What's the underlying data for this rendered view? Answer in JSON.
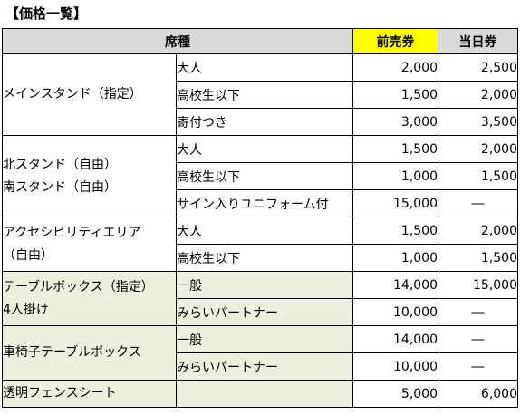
{
  "title": "【価格一覧】",
  "colors": {
    "header_gray": "#d9d9d9",
    "advance_yellow": "#ffff00",
    "green_rows": "#ebf1de"
  },
  "headers": {
    "seat": "席種",
    "advance": "前売券",
    "sameday": "当日券"
  },
  "sections": [
    {
      "lines": [
        "メインスタンド（指定）"
      ],
      "green": false,
      "rows": [
        {
          "label": "大人",
          "advance": "2,000",
          "sameday": "2,500"
        },
        {
          "label": "高校生以下",
          "advance": "1,500",
          "sameday": "2,000"
        },
        {
          "label": "寄付つき",
          "advance": "3,000",
          "sameday": "3,500"
        }
      ]
    },
    {
      "lines": [
        "北スタンド（自由）",
        "南スタンド（自由）"
      ],
      "green": false,
      "rows": [
        {
          "label": "大人",
          "advance": "1,500",
          "sameday": "2,000"
        },
        {
          "label": "高校生以下",
          "advance": "1,000",
          "sameday": "1,500"
        },
        {
          "label": "サイン入りユニフォーム付",
          "advance": "15,000",
          "sameday": "―"
        }
      ]
    },
    {
      "lines": [
        "アクセシビリティエリア",
        "（自由）"
      ],
      "green": false,
      "rows": [
        {
          "label": "大人",
          "advance": "1,500",
          "sameday": "2,000"
        },
        {
          "label": "高校生以下",
          "advance": "1,000",
          "sameday": "1,500"
        }
      ]
    },
    {
      "lines": [
        "テーブルボックス（指定）",
        "4人掛け"
      ],
      "green": true,
      "rows": [
        {
          "label": "一般",
          "advance": "14,000",
          "sameday": "15,000"
        },
        {
          "label": "みらいパートナー",
          "advance": "10,000",
          "sameday": "―"
        }
      ]
    },
    {
      "lines": [
        "車椅子テーブルボックス"
      ],
      "green": true,
      "rows": [
        {
          "label": "一般",
          "advance": "14,000",
          "sameday": "―"
        },
        {
          "label": "みらいパートナー",
          "advance": "10,000",
          "sameday": "―"
        }
      ]
    },
    {
      "lines": [
        "透明フェンスシート"
      ],
      "green": true,
      "rows": [
        {
          "label": "",
          "advance": "5,000",
          "sameday": "6,000"
        }
      ]
    }
  ]
}
